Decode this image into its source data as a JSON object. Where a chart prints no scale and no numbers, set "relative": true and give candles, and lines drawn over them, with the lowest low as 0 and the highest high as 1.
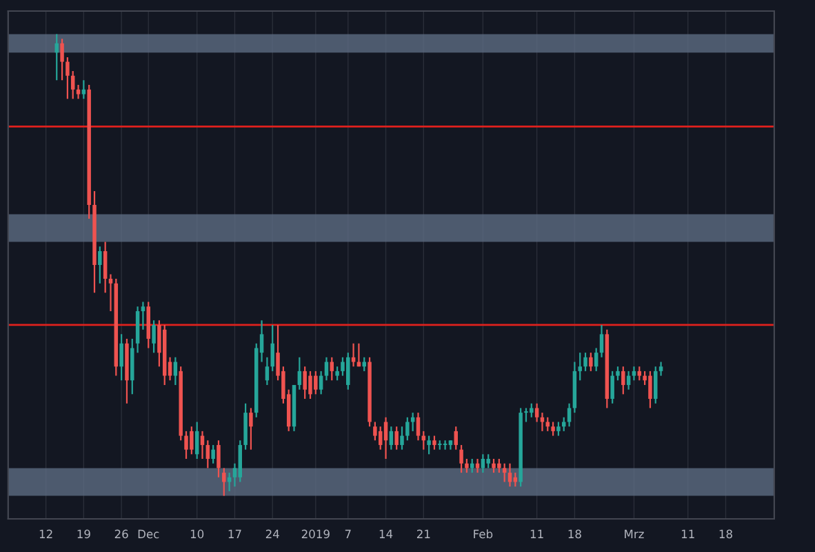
{
  "chart_data": {
    "type": "candlestick",
    "relative": true,
    "tick_labels": "x",
    "grid": true,
    "x": [
      "2018-11-14",
      "2018-11-15",
      "2018-11-16",
      "2018-11-17",
      "2018-11-18",
      "2018-11-19",
      "2018-11-20",
      "2018-11-21",
      "2018-11-22",
      "2018-11-23",
      "2018-11-24",
      "2018-11-25",
      "2018-11-26",
      "2018-11-27",
      "2018-11-28",
      "2018-11-29",
      "2018-11-30",
      "2018-12-01",
      "2018-12-02",
      "2018-12-03",
      "2018-12-04",
      "2018-12-05",
      "2018-12-06",
      "2018-12-07",
      "2018-12-08",
      "2018-12-09",
      "2018-12-10",
      "2018-12-11",
      "2018-12-12",
      "2018-12-13",
      "2018-12-14",
      "2018-12-15",
      "2018-12-16",
      "2018-12-17",
      "2018-12-18",
      "2018-12-19",
      "2018-12-20",
      "2018-12-21",
      "2018-12-22",
      "2018-12-23",
      "2018-12-24",
      "2018-12-25",
      "2018-12-26",
      "2018-12-27",
      "2018-12-28",
      "2018-12-29",
      "2018-12-30",
      "2018-12-31",
      "2019-01-01",
      "2019-01-02",
      "2019-01-03",
      "2019-01-04",
      "2019-01-05",
      "2019-01-06",
      "2019-01-07",
      "2019-01-08",
      "2019-01-09",
      "2019-01-10",
      "2019-01-11",
      "2019-01-12",
      "2019-01-13",
      "2019-01-14",
      "2019-01-15",
      "2019-01-16",
      "2019-01-17",
      "2019-01-18",
      "2019-01-19",
      "2019-01-20",
      "2019-01-21",
      "2019-01-22",
      "2019-01-23",
      "2019-01-24",
      "2019-01-25",
      "2019-01-26",
      "2019-01-27",
      "2019-01-28",
      "2019-01-29",
      "2019-01-30",
      "2019-01-31",
      "2019-02-01",
      "2019-02-02",
      "2019-02-03",
      "2019-02-04",
      "2019-02-05",
      "2019-02-06",
      "2019-02-07",
      "2019-02-08",
      "2019-02-09",
      "2019-02-10",
      "2019-02-11",
      "2019-02-12",
      "2019-02-13",
      "2019-02-14",
      "2019-02-15",
      "2019-02-16",
      "2019-02-17",
      "2019-02-18",
      "2019-02-19",
      "2019-02-20",
      "2019-02-21",
      "2019-02-22",
      "2019-02-23",
      "2019-02-24",
      "2019-02-25",
      "2019-02-26",
      "2019-02-27",
      "2019-02-28",
      "2019-03-01",
      "2019-03-02",
      "2019-03-03",
      "2019-03-04",
      "2019-03-05",
      "2019-03-06"
    ],
    "ohlc": [
      [
        0.96,
        1.0,
        0.9,
        0.98
      ],
      [
        0.98,
        0.99,
        0.9,
        0.94
      ],
      [
        0.94,
        0.95,
        0.86,
        0.91
      ],
      [
        0.91,
        0.92,
        0.86,
        0.88
      ],
      [
        0.88,
        0.89,
        0.86,
        0.87
      ],
      [
        0.87,
        0.9,
        0.86,
        0.88
      ],
      [
        0.88,
        0.89,
        0.6,
        0.63
      ],
      [
        0.63,
        0.66,
        0.44,
        0.5
      ],
      [
        0.5,
        0.54,
        0.46,
        0.53
      ],
      [
        0.53,
        0.55,
        0.44,
        0.47
      ],
      [
        0.47,
        0.48,
        0.4,
        0.46
      ],
      [
        0.46,
        0.47,
        0.26,
        0.28
      ],
      [
        0.28,
        0.35,
        0.25,
        0.33
      ],
      [
        0.33,
        0.34,
        0.2,
        0.25
      ],
      [
        0.25,
        0.34,
        0.22,
        0.32
      ],
      [
        0.33,
        0.41,
        0.31,
        0.4
      ],
      [
        0.4,
        0.42,
        0.36,
        0.41
      ],
      [
        0.41,
        0.42,
        0.32,
        0.34
      ],
      [
        0.33,
        0.38,
        0.31,
        0.37
      ],
      [
        0.37,
        0.38,
        0.28,
        0.31
      ],
      [
        0.36,
        0.37,
        0.24,
        0.26
      ],
      [
        0.29,
        0.3,
        0.25,
        0.26
      ],
      [
        0.26,
        0.3,
        0.24,
        0.29
      ],
      [
        0.27,
        0.28,
        0.12,
        0.13
      ],
      [
        0.13,
        0.14,
        0.08,
        0.1
      ],
      [
        0.14,
        0.15,
        0.09,
        0.1
      ],
      [
        0.09,
        0.16,
        0.08,
        0.14
      ],
      [
        0.13,
        0.14,
        0.08,
        0.11
      ],
      [
        0.11,
        0.12,
        0.06,
        0.08
      ],
      [
        0.08,
        0.11,
        0.07,
        0.1
      ],
      [
        0.11,
        0.12,
        0.04,
        0.06
      ],
      [
        0.05,
        0.06,
        0.0,
        0.03
      ],
      [
        0.03,
        0.05,
        0.01,
        0.04
      ],
      [
        0.04,
        0.07,
        0.02,
        0.06
      ],
      [
        0.04,
        0.12,
        0.03,
        0.11
      ],
      [
        0.11,
        0.2,
        0.1,
        0.18
      ],
      [
        0.18,
        0.19,
        0.1,
        0.15
      ],
      [
        0.18,
        0.33,
        0.17,
        0.32
      ],
      [
        0.31,
        0.38,
        0.29,
        0.35
      ],
      [
        0.25,
        0.3,
        0.24,
        0.28
      ],
      [
        0.28,
        0.37,
        0.27,
        0.33
      ],
      [
        0.31,
        0.37,
        0.25,
        0.26
      ],
      [
        0.27,
        0.28,
        0.2,
        0.21
      ],
      [
        0.22,
        0.23,
        0.14,
        0.15
      ],
      [
        0.15,
        0.24,
        0.14,
        0.24
      ],
      [
        0.24,
        0.3,
        0.23,
        0.27
      ],
      [
        0.27,
        0.28,
        0.21,
        0.23
      ],
      [
        0.26,
        0.27,
        0.21,
        0.22
      ],
      [
        0.26,
        0.27,
        0.22,
        0.23
      ],
      [
        0.23,
        0.27,
        0.22,
        0.26
      ],
      [
        0.26,
        0.3,
        0.25,
        0.29
      ],
      [
        0.29,
        0.3,
        0.25,
        0.27
      ],
      [
        0.26,
        0.28,
        0.25,
        0.27
      ],
      [
        0.27,
        0.3,
        0.26,
        0.29
      ],
      [
        0.24,
        0.31,
        0.23,
        0.3
      ],
      [
        0.3,
        0.33,
        0.28,
        0.29
      ],
      [
        0.29,
        0.33,
        0.28,
        0.28
      ],
      [
        0.28,
        0.3,
        0.27,
        0.29
      ],
      [
        0.29,
        0.3,
        0.15,
        0.16
      ],
      [
        0.15,
        0.16,
        0.12,
        0.13
      ],
      [
        0.14,
        0.15,
        0.1,
        0.11
      ],
      [
        0.16,
        0.17,
        0.08,
        0.12
      ],
      [
        0.11,
        0.15,
        0.1,
        0.14
      ],
      [
        0.14,
        0.15,
        0.1,
        0.11
      ],
      [
        0.11,
        0.15,
        0.1,
        0.13
      ],
      [
        0.13,
        0.17,
        0.12,
        0.16
      ],
      [
        0.16,
        0.18,
        0.14,
        0.17
      ],
      [
        0.17,
        0.18,
        0.12,
        0.13
      ],
      [
        0.13,
        0.14,
        0.1,
        0.12
      ],
      [
        0.11,
        0.13,
        0.09,
        0.12
      ],
      [
        0.12,
        0.13,
        0.1,
        0.11
      ],
      [
        0.11,
        0.12,
        0.1,
        0.11
      ],
      [
        0.11,
        0.12,
        0.1,
        0.11
      ],
      [
        0.11,
        0.12,
        0.1,
        0.12
      ],
      [
        0.14,
        0.15,
        0.1,
        0.11
      ],
      [
        0.1,
        0.11,
        0.05,
        0.07
      ],
      [
        0.07,
        0.08,
        0.05,
        0.06
      ],
      [
        0.06,
        0.08,
        0.05,
        0.07
      ],
      [
        0.07,
        0.08,
        0.05,
        0.06
      ],
      [
        0.06,
        0.09,
        0.05,
        0.08
      ],
      [
        0.07,
        0.09,
        0.06,
        0.08
      ],
      [
        0.07,
        0.08,
        0.05,
        0.06
      ],
      [
        0.07,
        0.08,
        0.05,
        0.06
      ],
      [
        0.06,
        0.07,
        0.03,
        0.05
      ],
      [
        0.05,
        0.07,
        0.02,
        0.03
      ],
      [
        0.04,
        0.05,
        0.02,
        0.03
      ],
      [
        0.03,
        0.19,
        0.02,
        0.18
      ],
      [
        0.18,
        0.19,
        0.16,
        0.18
      ],
      [
        0.18,
        0.2,
        0.17,
        0.19
      ],
      [
        0.19,
        0.2,
        0.16,
        0.17
      ],
      [
        0.17,
        0.18,
        0.14,
        0.16
      ],
      [
        0.16,
        0.17,
        0.14,
        0.15
      ],
      [
        0.15,
        0.16,
        0.13,
        0.14
      ],
      [
        0.14,
        0.16,
        0.13,
        0.15
      ],
      [
        0.15,
        0.17,
        0.14,
        0.16
      ],
      [
        0.16,
        0.2,
        0.15,
        0.19
      ],
      [
        0.19,
        0.29,
        0.18,
        0.27
      ],
      [
        0.27,
        0.31,
        0.25,
        0.28
      ],
      [
        0.28,
        0.31,
        0.27,
        0.3
      ],
      [
        0.3,
        0.31,
        0.27,
        0.28
      ],
      [
        0.28,
        0.32,
        0.27,
        0.31
      ],
      [
        0.31,
        0.37,
        0.3,
        0.35
      ],
      [
        0.35,
        0.36,
        0.19,
        0.21
      ],
      [
        0.21,
        0.27,
        0.2,
        0.26
      ],
      [
        0.26,
        0.28,
        0.25,
        0.27
      ],
      [
        0.27,
        0.28,
        0.22,
        0.24
      ],
      [
        0.24,
        0.27,
        0.23,
        0.26
      ],
      [
        0.26,
        0.28,
        0.25,
        0.27
      ],
      [
        0.27,
        0.28,
        0.25,
        0.26
      ],
      [
        0.26,
        0.27,
        0.24,
        0.25
      ],
      [
        0.26,
        0.27,
        0.19,
        0.21
      ],
      [
        0.21,
        0.28,
        0.2,
        0.27
      ],
      [
        0.27,
        0.29,
        0.26,
        0.28
      ]
    ],
    "xlim": [
      "2018-11-05",
      "2019-03-27"
    ],
    "xticks": [
      {
        "value": "2018-11-12",
        "label": "12"
      },
      {
        "value": "2018-11-19",
        "label": "19"
      },
      {
        "value": "2018-11-26",
        "label": "26"
      },
      {
        "value": "2018-12-01",
        "label": "Dec"
      },
      {
        "value": "2018-12-10",
        "label": "10"
      },
      {
        "value": "2018-12-17",
        "label": "17"
      },
      {
        "value": "2018-12-24",
        "label": "24"
      },
      {
        "value": "2019-01-01",
        "label": "2019"
      },
      {
        "value": "2019-01-07",
        "label": "7"
      },
      {
        "value": "2019-01-14",
        "label": "14"
      },
      {
        "value": "2019-01-21",
        "label": "21"
      },
      {
        "value": "2019-02-01",
        "label": "Feb"
      },
      {
        "value": "2019-02-11",
        "label": "11"
      },
      {
        "value": "2019-02-18",
        "label": "18"
      },
      {
        "value": "2019-03-01",
        "label": "Mrz"
      },
      {
        "value": "2019-03-11",
        "label": "11"
      },
      {
        "value": "2019-03-18",
        "label": "18"
      }
    ],
    "ref_lines": [
      {
        "axis": "y",
        "value": 0.8,
        "color": "#e0211d"
      },
      {
        "axis": "y",
        "value": 0.37,
        "color": "#e0211d"
      }
    ],
    "bands": [
      {
        "axis": "y",
        "from": 0.96,
        "to": 1.0,
        "color": "#5d6b82"
      },
      {
        "axis": "y",
        "from": 0.55,
        "to": 0.61,
        "color": "#5d6b82"
      },
      {
        "axis": "y",
        "from": 0.0,
        "to": 0.06,
        "color": "#5d6b82"
      }
    ]
  }
}
